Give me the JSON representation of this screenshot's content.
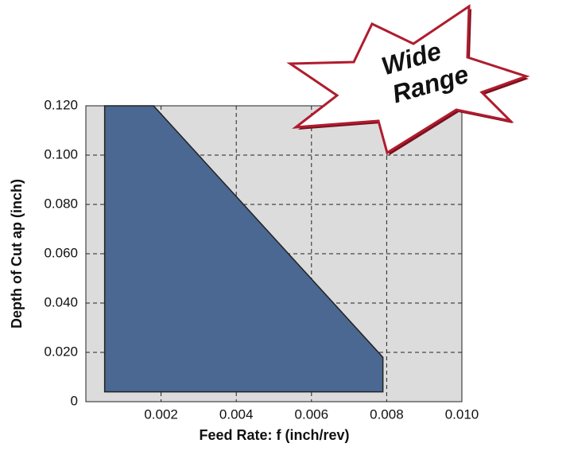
{
  "chart_data": {
    "type": "area",
    "x_label": "Feed Rate: f (inch/rev)",
    "y_label": "Depth of Cut ap (inch)",
    "annotations": [
      "Wide",
      "Range"
    ],
    "x": [
      0.0005,
      0.0005,
      0.0018,
      0.0079,
      0.0079
    ],
    "values": [
      0.004,
      0.12,
      0.12,
      0.018,
      0.004
    ],
    "color": "#4a6891",
    "xlim": [
      0,
      0.01
    ],
    "ylim": [
      0,
      0.12
    ],
    "xticks": [
      0.002,
      0.004,
      0.006,
      0.008,
      {
        "value": 0.01,
        "label": "0.010"
      }
    ],
    "yticks": [
      0,
      {
        "value": 0.02,
        "label": "0.020"
      },
      {
        "value": 0.04,
        "label": "0.040"
      },
      {
        "value": 0.06,
        "label": "0.060"
      },
      {
        "value": 0.08,
        "label": "0.080"
      },
      {
        "value": 0.1,
        "label": "0.100"
      },
      {
        "value": 0.12,
        "label": "0.120"
      }
    ],
    "grid": true
  }
}
